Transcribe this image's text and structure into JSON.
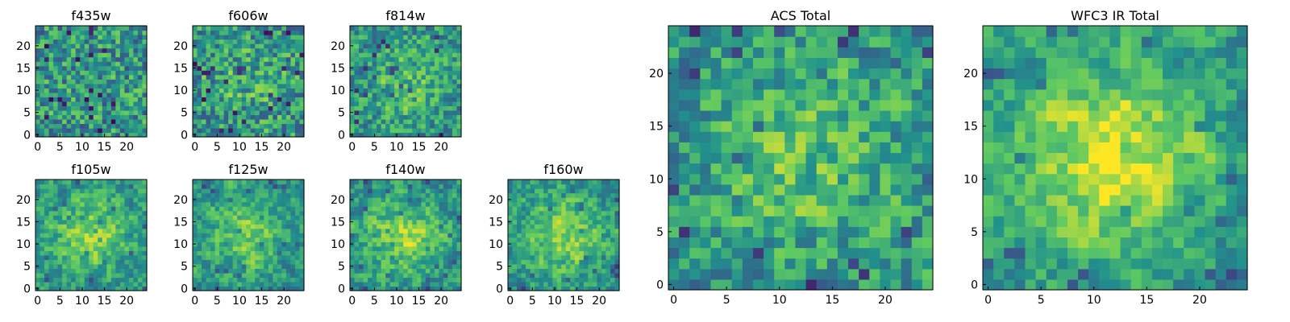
{
  "colormap": {
    "name": "viridis",
    "stops": [
      "#440154",
      "#3b528b",
      "#21918c",
      "#5ec962",
      "#fde725"
    ]
  },
  "chart_data": [
    {
      "type": "heatmap",
      "title": "f435w",
      "grid_size": 25,
      "xticks": [
        "0",
        "5",
        "10",
        "15",
        "20"
      ],
      "yticks": [
        "0",
        "5",
        "10",
        "15",
        "20"
      ],
      "seed": 11,
      "smooth": 0.0,
      "blob": 0.0,
      "values": []
    },
    {
      "type": "heatmap",
      "title": "f606w",
      "grid_size": 25,
      "xticks": [
        "0",
        "5",
        "10",
        "15",
        "20"
      ],
      "yticks": [
        "0",
        "5",
        "10",
        "15",
        "20"
      ],
      "seed": 23,
      "smooth": 0.0,
      "blob": 0.1,
      "values": []
    },
    {
      "type": "heatmap",
      "title": "f814w",
      "grid_size": 25,
      "xticks": [
        "0",
        "5",
        "10",
        "15",
        "20"
      ],
      "yticks": [
        "0",
        "5",
        "10",
        "15",
        "20"
      ],
      "seed": 37,
      "smooth": 0.2,
      "blob": 0.15,
      "values": []
    },
    {
      "type": "heatmap",
      "title": "f105w",
      "grid_size": 25,
      "xticks": [
        "0",
        "5",
        "10",
        "15",
        "20"
      ],
      "yticks": [
        "0",
        "5",
        "10",
        "15",
        "20"
      ],
      "seed": 41,
      "smooth": 0.45,
      "blob": 0.3,
      "values": []
    },
    {
      "type": "heatmap",
      "title": "f125w",
      "grid_size": 25,
      "xticks": [
        "0",
        "5",
        "10",
        "15",
        "20"
      ],
      "yticks": [
        "0",
        "5",
        "10",
        "15",
        "20"
      ],
      "seed": 53,
      "smooth": 0.45,
      "blob": 0.25,
      "values": []
    },
    {
      "type": "heatmap",
      "title": "f140w",
      "grid_size": 25,
      "xticks": [
        "0",
        "5",
        "10",
        "15",
        "20"
      ],
      "yticks": [
        "0",
        "5",
        "10",
        "15",
        "20"
      ],
      "seed": 67,
      "smooth": 0.45,
      "blob": 0.3,
      "values": []
    },
    {
      "type": "heatmap",
      "title": "f160w",
      "grid_size": 25,
      "xticks": [
        "0",
        "5",
        "10",
        "15",
        "20"
      ],
      "yticks": [
        "0",
        "5",
        "10",
        "15",
        "20"
      ],
      "seed": 79,
      "smooth": 0.45,
      "blob": 0.3,
      "values": []
    },
    {
      "type": "heatmap",
      "title": "ACS Total",
      "grid_size": 25,
      "xticks": [
        "0",
        "5",
        "10",
        "15",
        "20"
      ],
      "yticks": [
        "0",
        "5",
        "10",
        "15",
        "20"
      ],
      "seed": 97,
      "smooth": 0.25,
      "blob": 0.2,
      "values": []
    },
    {
      "type": "heatmap",
      "title": "WFC3 IR Total",
      "grid_size": 25,
      "xticks": [
        "0",
        "5",
        "10",
        "15",
        "20"
      ],
      "yticks": [
        "0",
        "5",
        "10",
        "15",
        "20"
      ],
      "seed": 113,
      "smooth": 0.5,
      "blob": 0.45,
      "values": []
    }
  ]
}
